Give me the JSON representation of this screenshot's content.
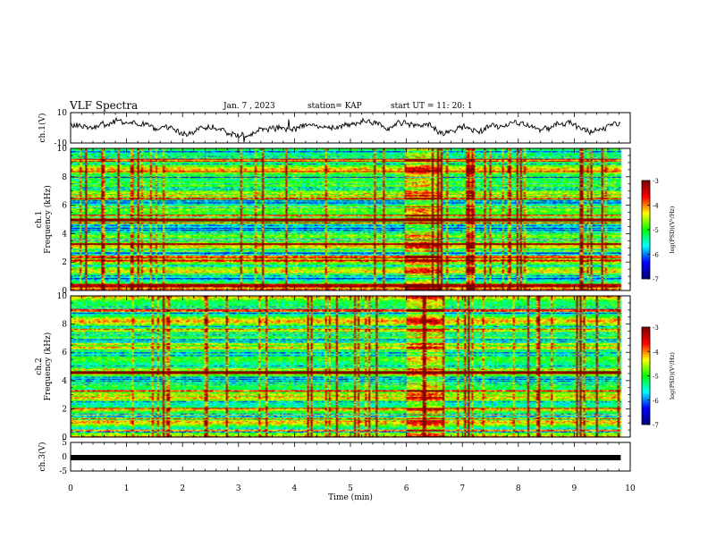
{
  "header": {
    "title": "VLF Spectra",
    "date": "Jan. 7 , 2023",
    "station": "station= KAP",
    "start": "start UT = 11: 20: 1"
  },
  "chart_data": [
    {
      "type": "line",
      "panel": "ch1-waveform",
      "ylabel": "ch.1(V)",
      "ylim": [
        -10,
        10
      ],
      "yticks": [
        "10",
        "-10"
      ],
      "xlim": [
        0,
        10
      ],
      "description_series": "noisy oscillating waveform between about -5 and 7 V, data ending at ~9.83 min"
    },
    {
      "type": "heatmap",
      "panel": "ch1-spectrogram",
      "ylabel": "ch.1\nFrequency (kHz)",
      "ylim": [
        0,
        10
      ],
      "yticks": [
        "0",
        "2",
        "4",
        "6",
        "8",
        "10"
      ],
      "xlim": [
        0,
        10
      ],
      "data_end_min": 9.83,
      "burst_interval_min": [
        6.0,
        6.65
      ],
      "strong_lines_khz": [
        0.4,
        2.1,
        2.4,
        3.3,
        5.0,
        5.3,
        6.5,
        9.2
      ],
      "colorbar": {
        "label": "log(PSD)(V²/Hz)",
        "range": [
          -7,
          -3
        ],
        "ticks": [
          "-3",
          "-4",
          "-5",
          "-6",
          "-7"
        ]
      }
    },
    {
      "type": "heatmap",
      "panel": "ch2-spectrogram",
      "ylabel": "ch.2\nFrequency (kHz)",
      "ylim": [
        0,
        10
      ],
      "yticks": [
        "0",
        "2",
        "4",
        "6",
        "8",
        "10"
      ],
      "xlim": [
        0,
        10
      ],
      "data_end_min": 9.83,
      "burst_interval_min": [
        6.0,
        6.65
      ],
      "strong_lines_khz": [
        0.5,
        2.0,
        3.3,
        4.6,
        7.6,
        9.0
      ],
      "colorbar": {
        "label": "log(PSD)(V²/Hz)",
        "range": [
          -7,
          -3
        ],
        "ticks": [
          "-3",
          "-4",
          "-5",
          "-6",
          "-7"
        ]
      }
    },
    {
      "type": "line",
      "panel": "ch3-waveform",
      "ylabel": "ch.3(V)",
      "ylim": [
        -5,
        5
      ],
      "yticks": [
        "5",
        "0",
        "-5"
      ],
      "xlim": [
        0,
        10
      ],
      "constant_value_v": 0
    }
  ],
  "xaxis": {
    "label": "Time (min)",
    "ticks": [
      "0",
      "1",
      "2",
      "3",
      "4",
      "5",
      "6",
      "7",
      "8",
      "9",
      "10"
    ]
  },
  "colors": {
    "trace": "#000000",
    "frame": "#000000",
    "colormap": [
      "#000080",
      "#0000ff",
      "#00ffff",
      "#00ff00",
      "#ffff00",
      "#ff0000",
      "#800000"
    ]
  }
}
